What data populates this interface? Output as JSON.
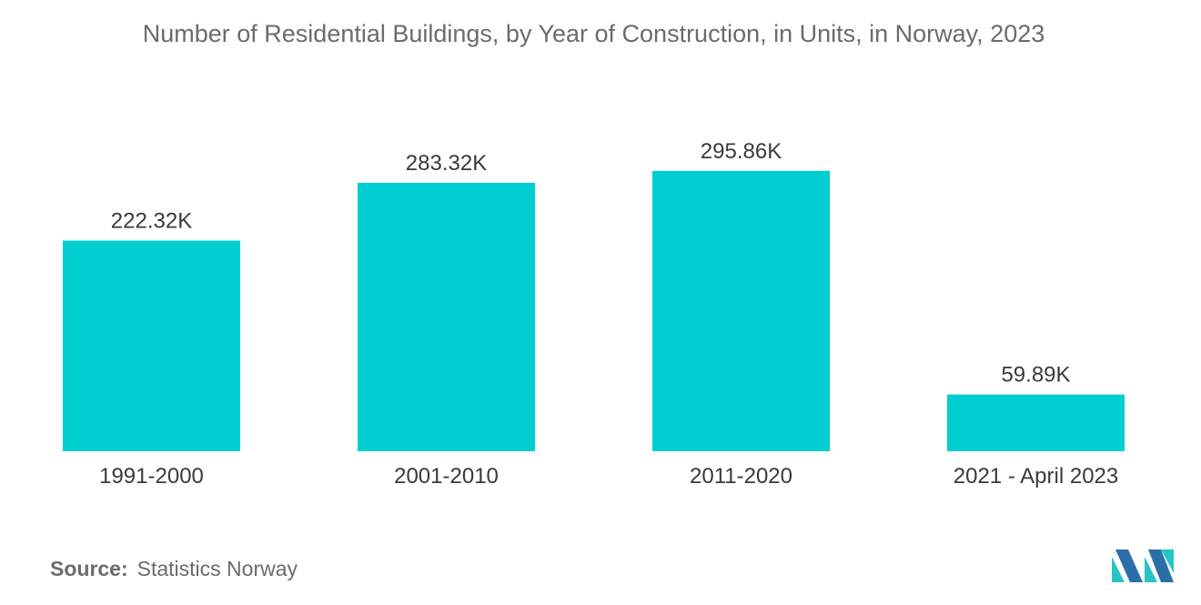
{
  "chart_data": {
    "type": "bar",
    "title": "Number of Residential Buildings, by Year of Construction, in Units, in Norway, 2023",
    "categories": [
      "1991-2000",
      "2001-2010",
      "2011-2020",
      "2021 - April 2023"
    ],
    "values": [
      222.32,
      283.32,
      295.86,
      59.89
    ],
    "value_labels": [
      "222.32K",
      "283.32K",
      "295.86K",
      "59.89K"
    ],
    "unit": "K",
    "ylim": [
      0,
      300
    ],
    "grid": false,
    "legend": "none",
    "bar_color": "#00ced1"
  },
  "footer": {
    "source_label": "Source:",
    "source_value": "Statistics Norway"
  },
  "logo": {
    "icon": "mordor-intelligence-logo-icon",
    "colors": [
      "#2b6fa8",
      "#26c4c6"
    ]
  }
}
